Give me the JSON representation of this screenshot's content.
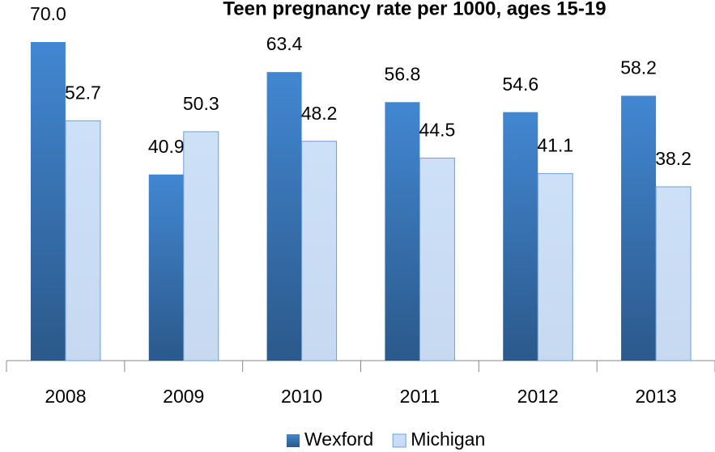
{
  "chart_data": {
    "type": "bar",
    "title": "Teen pregnancy rate per 1000, ages 15-19",
    "categories": [
      "2008",
      "2009",
      "2010",
      "2011",
      "2012",
      "2013"
    ],
    "series": [
      {
        "name": "Wexford",
        "color": "#3c7bbf",
        "values": [
          70.0,
          40.9,
          63.4,
          56.8,
          54.6,
          58.2
        ],
        "value_labels": [
          "70.0",
          "40.9",
          "63.4",
          "56.8",
          "54.6",
          "58.2"
        ]
      },
      {
        "name": "Michigan",
        "color": "#c6d9f1",
        "values": [
          52.7,
          50.3,
          48.2,
          44.5,
          41.1,
          38.2
        ],
        "value_labels": [
          "52.7",
          "50.3",
          "48.2",
          "44.5",
          "41.1",
          "38.2"
        ]
      }
    ],
    "ylim": [
      0,
      70
    ],
    "legend": "bottom"
  }
}
